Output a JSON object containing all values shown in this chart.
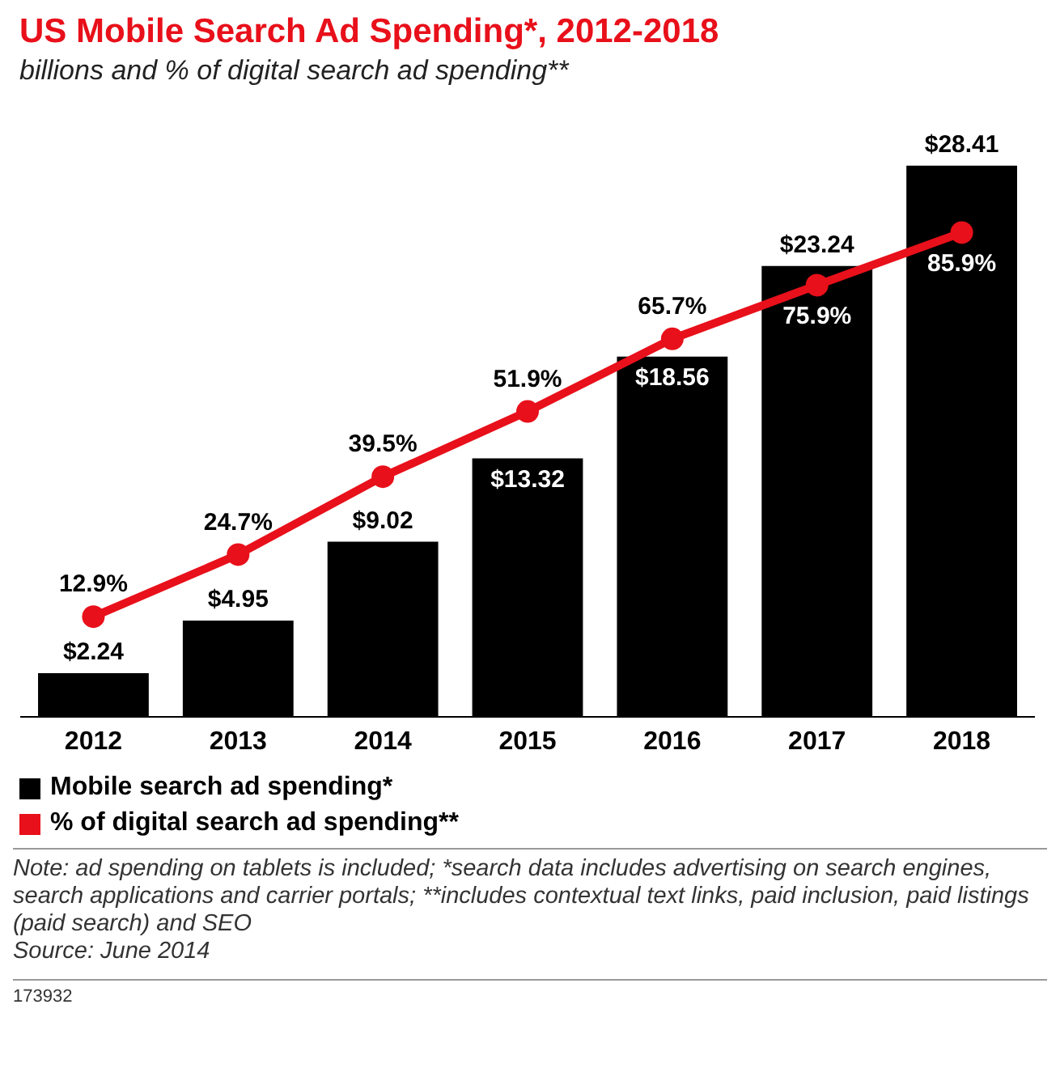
{
  "chart_data": {
    "type": "bar",
    "title": "US Mobile Search Ad Spending*, 2012-2018",
    "subtitle": "billions and % of digital search ad spending**",
    "categories": [
      "2012",
      "2013",
      "2014",
      "2015",
      "2016",
      "2017",
      "2018"
    ],
    "series": [
      {
        "name": "Mobile search ad spending*",
        "color": "#000000",
        "values": [
          2.24,
          4.95,
          9.02,
          13.32,
          18.56,
          23.24,
          28.41
        ],
        "value_labels": [
          "$2.24",
          "$4.95",
          "$9.02",
          "$13.32",
          "$18.56",
          "$23.24",
          "$28.41"
        ]
      },
      {
        "name": "% of digital search ad spending**",
        "type": "line",
        "axis": "y2",
        "color": "#e8101a",
        "values": [
          12.9,
          24.7,
          39.5,
          51.9,
          65.7,
          75.9,
          85.9
        ],
        "value_labels": [
          "12.9%",
          "24.7%",
          "39.5%",
          "51.9%",
          "65.7%",
          "75.9%",
          "85.9%"
        ]
      }
    ],
    "tick_labels": "x",
    "grid": false,
    "legend": "bottom left",
    "marker": "circle",
    "line_style": "solid",
    "annotations": [
      "Note: ad spending on tablets is included; *search data includes advertising on search engines, search applications and carrier portals; **includes contextual text links, paid inclusion, paid listings (paid search) and SEO",
      "Source: June 2014",
      "173932"
    ]
  }
}
